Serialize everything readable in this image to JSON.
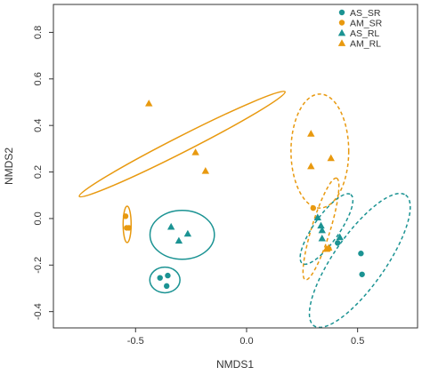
{
  "chart_data": {
    "type": "scatter",
    "title": "",
    "xlabel": "NMDS1",
    "ylabel": "NMDS2",
    "xlim": [
      -0.87,
      0.77
    ],
    "ylim": [
      -0.47,
      0.92
    ],
    "xticks": [
      -0.5,
      0.0,
      0.5
    ],
    "xtick_labels": [
      "-0.5",
      "0.0",
      "0.5"
    ],
    "yticks": [
      -0.4,
      -0.2,
      0.0,
      0.2,
      0.4,
      0.6,
      0.8
    ],
    "ytick_labels": [
      "-0.4",
      "-0.2",
      "0.0",
      "0.2",
      "0.4",
      "0.6",
      "0.8"
    ],
    "grid": false,
    "legend_position": "top-right",
    "series": [
      {
        "name": "AS_SR",
        "marker": "circle",
        "color": "#1b9393",
        "points": [
          [
            -0.39,
            -0.255
          ],
          [
            -0.36,
            -0.29
          ],
          [
            -0.355,
            -0.245
          ],
          [
            0.41,
            -0.105
          ],
          [
            0.515,
            -0.15
          ],
          [
            0.52,
            -0.24
          ]
        ]
      },
      {
        "name": "AM_SR",
        "marker": "circle",
        "color": "#e8990f",
        "points": [
          [
            -0.545,
            0.01
          ],
          [
            -0.54,
            -0.04
          ],
          [
            -0.53,
            -0.04
          ],
          [
            0.3,
            0.045
          ],
          [
            0.37,
            -0.13
          ]
        ]
      },
      {
        "name": "AS_RL",
        "marker": "triangle",
        "color": "#1b9393",
        "points": [
          [
            -0.34,
            -0.035
          ],
          [
            -0.305,
            -0.095
          ],
          [
            -0.265,
            -0.065
          ],
          [
            0.32,
            0.005
          ],
          [
            0.335,
            -0.03
          ],
          [
            0.34,
            -0.05
          ],
          [
            0.34,
            -0.085
          ],
          [
            0.42,
            -0.08
          ]
        ]
      },
      {
        "name": "AM_RL",
        "marker": "triangle",
        "color": "#e8990f",
        "points": [
          [
            -0.44,
            0.495
          ],
          [
            -0.23,
            0.285
          ],
          [
            -0.185,
            0.205
          ],
          [
            0.29,
            0.365
          ],
          [
            0.29,
            0.225
          ],
          [
            0.38,
            0.26
          ],
          [
            0.36,
            -0.13
          ],
          [
            0.37,
            -0.125
          ]
        ]
      }
    ],
    "ellipses": [
      {
        "series": "AS_SR",
        "style": "solid",
        "color": "#1b9393",
        "cx": -0.368,
        "cy": -0.264,
        "rx": 0.068,
        "ry": 0.055,
        "angle": 0
      },
      {
        "series": "AS_SR",
        "style": "dashed",
        "color": "#1b9393",
        "cx": 0.51,
        "cy": -0.18,
        "rx": 0.36,
        "ry": 0.11,
        "angle": -55
      },
      {
        "series": "AM_SR",
        "style": "solid",
        "color": "#e8990f",
        "cx": -0.538,
        "cy": -0.025,
        "rx": 0.018,
        "ry": 0.078,
        "angle": 0
      },
      {
        "series": "AM_SR",
        "style": "dashed",
        "color": "#e8990f",
        "cx": 0.335,
        "cy": -0.045,
        "rx": 0.24,
        "ry": 0.04,
        "angle": -73
      },
      {
        "series": "AS_RL",
        "style": "solid",
        "color": "#1b9393",
        "cx": -0.29,
        "cy": -0.07,
        "rx": 0.145,
        "ry": 0.105,
        "angle": 0
      },
      {
        "series": "AS_RL",
        "style": "dashed",
        "color": "#1b9393",
        "cx": 0.36,
        "cy": -0.045,
        "rx": 0.19,
        "ry": 0.055,
        "angle": -55
      },
      {
        "series": "AM_RL",
        "style": "solid",
        "color": "#e8990f",
        "cx": -0.29,
        "cy": 0.32,
        "rx": 0.52,
        "ry": 0.034,
        "angle": -27
      },
      {
        "series": "AM_RL",
        "style": "dashed",
        "color": "#e8990f",
        "cx": 0.33,
        "cy": 0.29,
        "rx": 0.13,
        "ry": 0.245,
        "angle": 0
      }
    ]
  }
}
